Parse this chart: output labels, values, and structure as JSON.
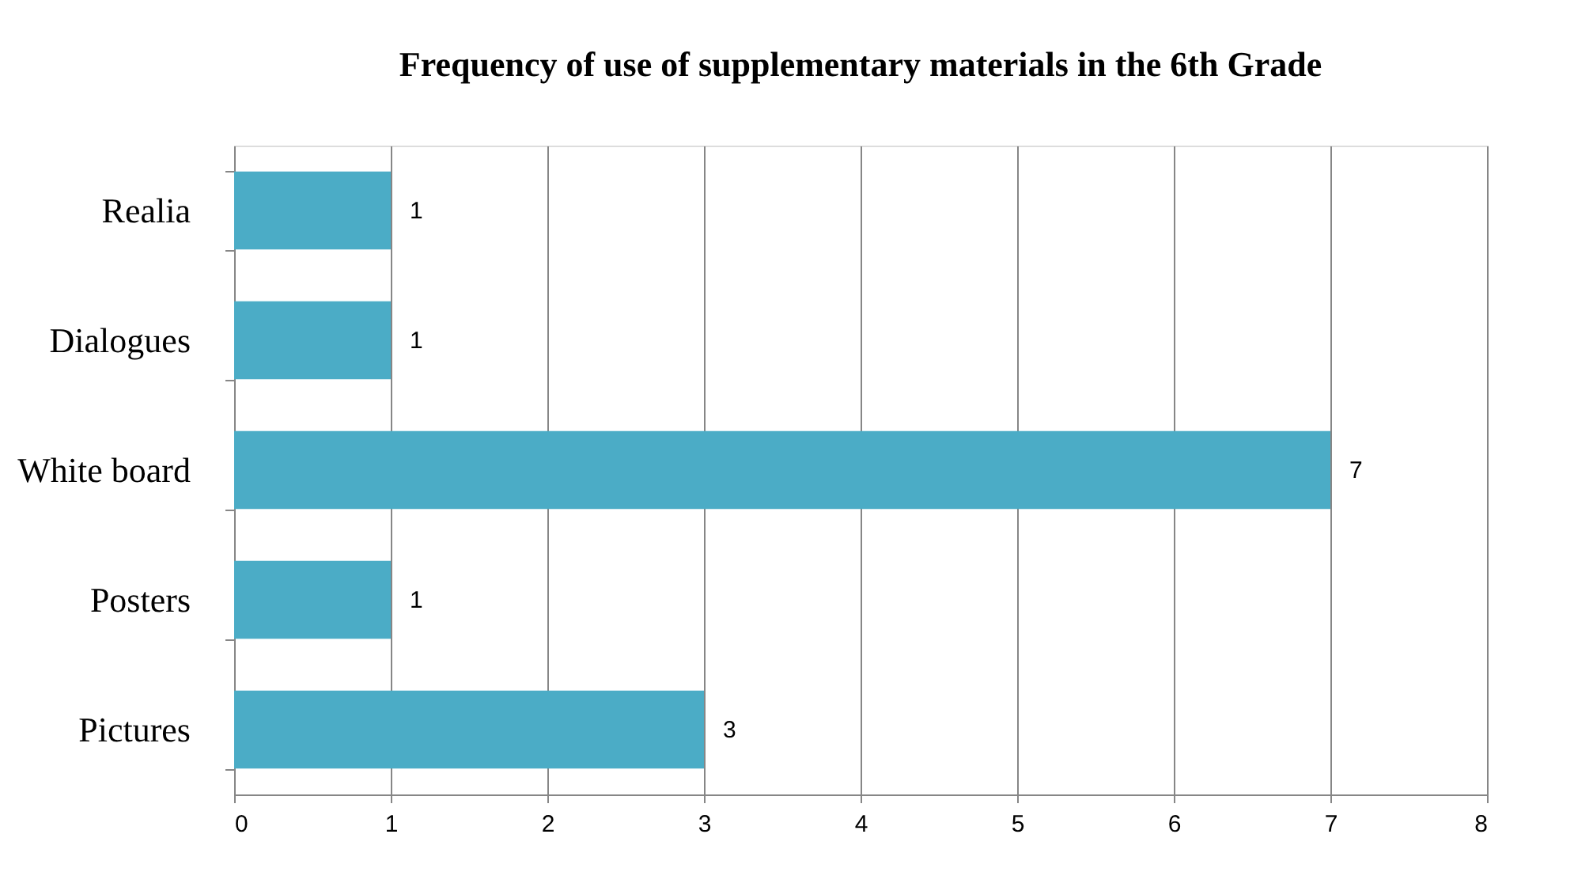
{
  "chart_data": {
    "type": "bar",
    "orientation": "horizontal",
    "title": "Frequency of use of supplementary materials  in the 6th Grade",
    "categories": [
      "Realia",
      "Dialogues",
      "White board",
      "Posters",
      "Pictures"
    ],
    "values": [
      1,
      1,
      7,
      1,
      3
    ],
    "color": "#4bacc6",
    "xlim": [
      0,
      8
    ],
    "xticks": [
      0,
      1,
      2,
      3,
      4,
      5,
      6,
      7,
      8
    ],
    "grid": "x",
    "data_labels": true
  }
}
